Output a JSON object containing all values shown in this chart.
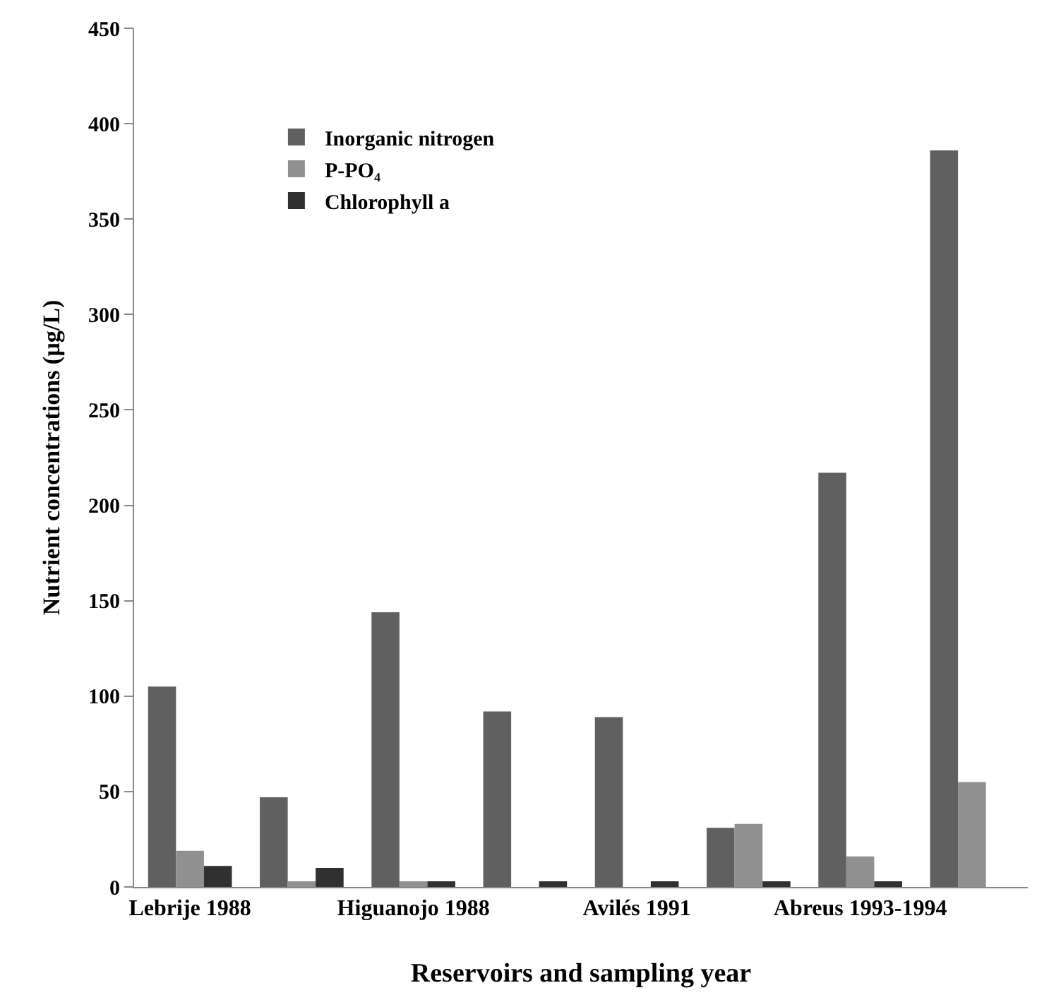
{
  "chart_data": {
    "type": "bar",
    "xlabel": "Reservoirs and sampling year",
    "ylabel": "Nutrient concentrations (µg/L)",
    "categories": [
      "Lebrije 1988",
      null,
      "Higuanojo 1988",
      null,
      "Avilés 1991",
      null,
      "Abreus 1993-1994",
      null
    ],
    "series": [
      {
        "name": "Inorganic nitrogen",
        "color": "#606060",
        "values": [
          105,
          47,
          144,
          92,
          89,
          31,
          217,
          386
        ]
      },
      {
        "name": "P-PO₄",
        "color": "#909090",
        "values": [
          19,
          3,
          3,
          null,
          null,
          33,
          16,
          55
        ]
      },
      {
        "name": "Chlorophyll a",
        "color": "#303030",
        "values": [
          11,
          10,
          3,
          3,
          3,
          3,
          3,
          null
        ]
      }
    ],
    "ylim": [
      0,
      450
    ],
    "yticks": [
      0,
      50,
      100,
      150,
      200,
      250,
      300,
      350,
      400,
      450
    ],
    "legend": "top left"
  }
}
